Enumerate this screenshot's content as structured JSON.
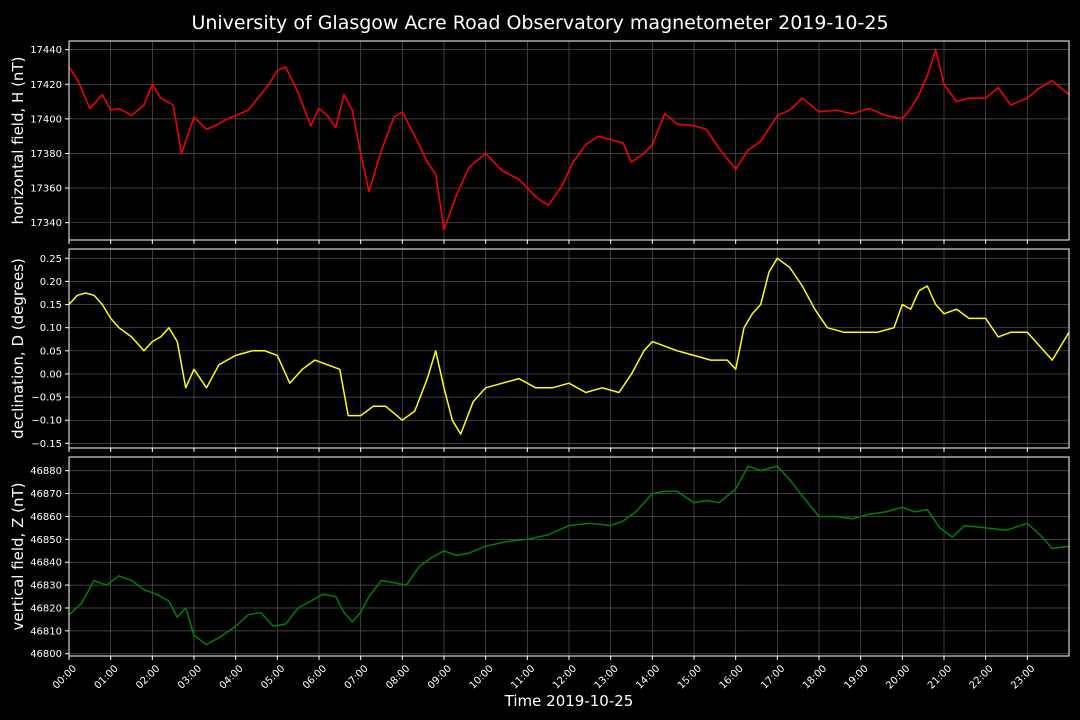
{
  "chart_data": {
    "type": "line",
    "title": "University of Glasgow Acre Road Observatory magnetometer 2019-10-25",
    "xlabel": "Time 2019-10-25",
    "x_unit": "hours",
    "xlim": [
      0,
      24
    ],
    "xtick_labels": [
      "00:00",
      "01:00",
      "02:00",
      "03:00",
      "04:00",
      "05:00",
      "06:00",
      "07:00",
      "08:00",
      "09:00",
      "10:00",
      "11:00",
      "12:00",
      "13:00",
      "14:00",
      "15:00",
      "16:00",
      "17:00",
      "18:00",
      "19:00",
      "20:00",
      "21:00",
      "22:00",
      "23:00"
    ],
    "grid": true,
    "panels": [
      {
        "ylabel": "horizontal field, H (nT)",
        "color": "#ff0000",
        "ylim": [
          17330,
          17445
        ],
        "yticks": [
          17340,
          17360,
          17380,
          17400,
          17420,
          17440
        ],
        "ytick_labels": [
          "17340",
          "17360",
          "17380",
          "17400",
          "17420",
          "17440"
        ],
        "x": [
          0,
          0.2,
          0.5,
          0.8,
          1.0,
          1.2,
          1.5,
          1.8,
          2.0,
          2.2,
          2.5,
          2.7,
          3.0,
          3.3,
          3.5,
          3.8,
          4.0,
          4.3,
          4.6,
          4.8,
          5.0,
          5.2,
          5.5,
          5.8,
          6.0,
          6.2,
          6.4,
          6.6,
          6.8,
          7.0,
          7.2,
          7.5,
          7.8,
          8.0,
          8.3,
          8.6,
          8.8,
          9.0,
          9.3,
          9.6,
          10.0,
          10.4,
          10.8,
          11.2,
          11.5,
          11.8,
          12.1,
          12.4,
          12.7,
          13.0,
          13.3,
          13.5,
          13.8,
          14.0,
          14.3,
          14.6,
          15.0,
          15.3,
          15.6,
          16.0,
          16.3,
          16.6,
          17.0,
          17.3,
          17.6,
          18.0,
          18.4,
          18.8,
          19.2,
          19.6,
          20.0,
          20.2,
          20.4,
          20.6,
          20.8,
          21.0,
          21.3,
          21.6,
          22.0,
          22.3,
          22.6,
          23.0,
          23.3,
          23.6,
          24.0
        ],
        "y": [
          17430,
          17423,
          17406,
          17414,
          17405,
          17406,
          17402,
          17408,
          17420,
          17412,
          17408,
          17380,
          17401,
          17394,
          17396,
          17400,
          17402,
          17405,
          17414,
          17420,
          17428,
          17430,
          17415,
          17396,
          17406,
          17402,
          17395,
          17414,
          17405,
          17380,
          17358,
          17382,
          17401,
          17404,
          17390,
          17375,
          17368,
          17336,
          17356,
          17372,
          17380,
          17370,
          17365,
          17355,
          17350,
          17360,
          17375,
          17385,
          17390,
          17388,
          17386,
          17375,
          17380,
          17385,
          17403,
          17397,
          17396,
          17394,
          17383,
          17371,
          17382,
          17387,
          17402,
          17405,
          17412,
          17404,
          17405,
          17403,
          17406,
          17402,
          17400,
          17406,
          17414,
          17425,
          17440,
          17420,
          17410,
          17412,
          17412,
          17418,
          17408,
          17412,
          17418,
          17422,
          17414
        ]
      },
      {
        "ylabel": "declination, D (degrees)",
        "color": "#ffff00",
        "ylim": [
          -0.16,
          0.27
        ],
        "yticks": [
          -0.15,
          -0.1,
          -0.05,
          0.0,
          0.05,
          0.1,
          0.15,
          0.2,
          0.25
        ],
        "ytick_labels": [
          "−0.15",
          "−0.10",
          "−0.05",
          "0.00",
          "0.05",
          "0.10",
          "0.15",
          "0.20",
          "0.25"
        ],
        "x": [
          0,
          0.2,
          0.4,
          0.6,
          0.8,
          1.0,
          1.2,
          1.5,
          1.8,
          2.0,
          2.2,
          2.4,
          2.6,
          2.8,
          3.0,
          3.3,
          3.6,
          4.0,
          4.4,
          4.7,
          5.0,
          5.3,
          5.6,
          5.9,
          6.2,
          6.5,
          6.7,
          7.0,
          7.3,
          7.6,
          8.0,
          8.3,
          8.6,
          8.8,
          9.0,
          9.2,
          9.4,
          9.7,
          10.0,
          10.4,
          10.8,
          11.2,
          11.6,
          12.0,
          12.4,
          12.8,
          13.2,
          13.5,
          13.8,
          14.0,
          14.3,
          14.6,
          15.0,
          15.4,
          15.8,
          16.0,
          16.2,
          16.4,
          16.6,
          16.8,
          17.0,
          17.3,
          17.6,
          17.9,
          18.2,
          18.6,
          19.0,
          19.4,
          19.8,
          20.0,
          20.2,
          20.4,
          20.6,
          20.8,
          21.0,
          21.3,
          21.6,
          22.0,
          22.3,
          22.6,
          23.0,
          23.3,
          23.6,
          24.0
        ],
        "y": [
          0.15,
          0.17,
          0.175,
          0.17,
          0.15,
          0.12,
          0.1,
          0.08,
          0.05,
          0.07,
          0.08,
          0.1,
          0.07,
          -0.03,
          0.01,
          -0.03,
          0.02,
          0.04,
          0.05,
          0.05,
          0.04,
          -0.02,
          0.01,
          0.03,
          0.02,
          0.01,
          -0.09,
          -0.09,
          -0.07,
          -0.07,
          -0.1,
          -0.08,
          -0.01,
          0.05,
          -0.03,
          -0.1,
          -0.13,
          -0.06,
          -0.03,
          -0.02,
          -0.01,
          -0.03,
          -0.03,
          -0.02,
          -0.04,
          -0.03,
          -0.04,
          0.0,
          0.05,
          0.07,
          0.06,
          0.05,
          0.04,
          0.03,
          0.03,
          0.01,
          0.1,
          0.13,
          0.15,
          0.22,
          0.25,
          0.23,
          0.19,
          0.14,
          0.1,
          0.09,
          0.09,
          0.09,
          0.1,
          0.15,
          0.14,
          0.18,
          0.19,
          0.15,
          0.13,
          0.14,
          0.12,
          0.12,
          0.08,
          0.09,
          0.09,
          0.06,
          0.03,
          0.09
        ]
      },
      {
        "ylabel": "vertical field, Z (nT)",
        "color": "#008000",
        "ylim": [
          46799,
          46886
        ],
        "yticks": [
          46800,
          46810,
          46820,
          46830,
          46840,
          46850,
          46860,
          46870,
          46880
        ],
        "ytick_labels": [
          "46800",
          "46810",
          "46820",
          "46830",
          "46840",
          "46850",
          "46860",
          "46870",
          "46880"
        ],
        "x": [
          0,
          0.3,
          0.6,
          0.9,
          1.2,
          1.5,
          1.8,
          2.1,
          2.4,
          2.6,
          2.8,
          3.0,
          3.3,
          3.6,
          4.0,
          4.3,
          4.6,
          4.9,
          5.2,
          5.5,
          5.8,
          6.1,
          6.4,
          6.6,
          6.8,
          7.0,
          7.2,
          7.5,
          7.8,
          8.1,
          8.4,
          8.7,
          9.0,
          9.3,
          9.6,
          10.0,
          10.5,
          11.0,
          11.5,
          12.0,
          12.5,
          13.0,
          13.3,
          13.6,
          14.0,
          14.3,
          14.6,
          15.0,
          15.3,
          15.6,
          16.0,
          16.3,
          16.6,
          17.0,
          17.3,
          17.6,
          18.0,
          18.4,
          18.8,
          19.2,
          19.6,
          20.0,
          20.3,
          20.6,
          20.9,
          21.2,
          21.5,
          22.0,
          22.5,
          23.0,
          23.3,
          23.6,
          24.0
        ],
        "y": [
          46817,
          46822,
          46832,
          46830,
          46834,
          46832,
          46828,
          46826,
          46823,
          46816,
          46820,
          46808,
          46804,
          46807,
          46812,
          46817,
          46818,
          46812,
          46813,
          46820,
          46823,
          46826,
          46825,
          46818,
          46814,
          46818,
          46825,
          46832,
          46831,
          46830,
          46838,
          46842,
          46845,
          46843,
          46844,
          46847,
          46849,
          46850,
          46852,
          46856,
          46857,
          46856,
          46858,
          46862,
          46870,
          46871,
          46871,
          46866,
          46867,
          46866,
          46872,
          46882,
          46880,
          46882,
          46876,
          46869,
          46860,
          46860,
          46859,
          46861,
          46862,
          46864,
          46862,
          46863,
          46855,
          46851,
          46856,
          46855,
          46854,
          46857,
          46852,
          46846,
          46847
        ]
      }
    ]
  }
}
